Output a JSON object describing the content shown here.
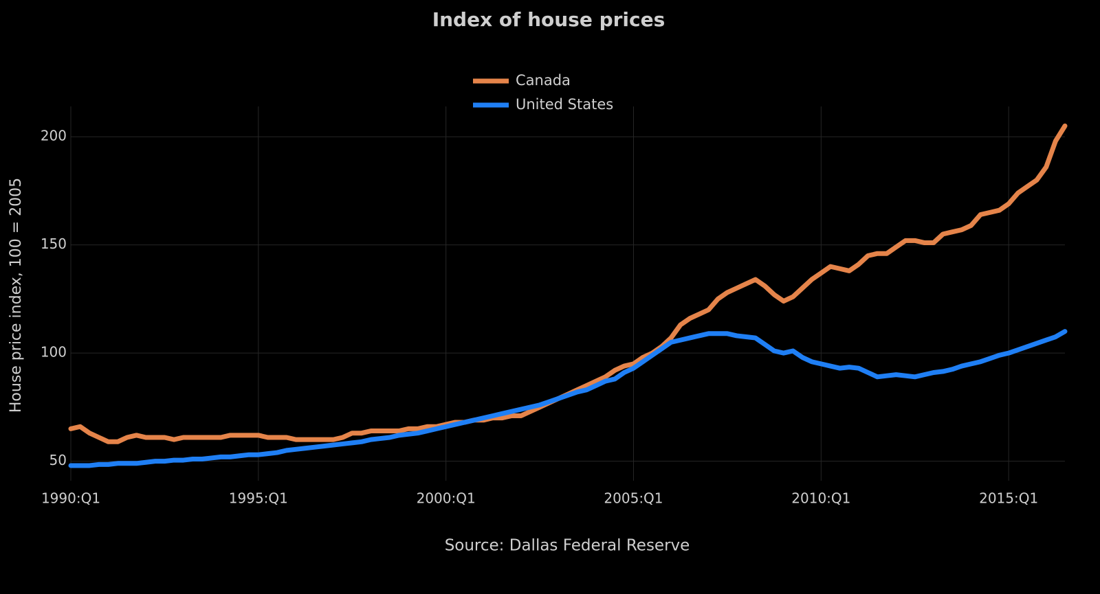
{
  "chart_data": {
    "type": "line",
    "title": "Index of house prices",
    "y_label": "House price index, 100 = 2005",
    "caption": "Source: Dallas Federal Reserve",
    "categories": [
      "1990:Q1",
      null,
      null,
      null,
      null,
      null,
      null,
      null,
      null,
      null,
      null,
      null,
      null,
      null,
      null,
      null,
      null,
      null,
      null,
      null,
      "1995:Q1",
      null,
      null,
      null,
      null,
      null,
      null,
      null,
      null,
      null,
      null,
      null,
      null,
      null,
      null,
      null,
      null,
      null,
      null,
      null,
      "2000:Q1",
      null,
      null,
      null,
      null,
      null,
      null,
      null,
      null,
      null,
      null,
      null,
      null,
      null,
      null,
      null,
      null,
      null,
      null,
      null,
      "2005:Q1",
      null,
      null,
      null,
      null,
      null,
      null,
      null,
      null,
      null,
      null,
      null,
      null,
      null,
      null,
      null,
      null,
      null,
      null,
      null,
      "2010:Q1",
      null,
      null,
      null,
      null,
      null,
      null,
      null,
      null,
      null,
      null,
      null,
      null,
      null,
      null,
      null,
      null,
      null,
      null,
      null,
      "2015:Q1",
      null,
      null,
      null,
      null,
      null,
      null
    ],
    "series": [
      {
        "name": "Canada",
        "color": "#e5844a",
        "values": [
          65,
          66,
          63,
          61,
          59,
          59,
          61,
          62,
          61,
          61,
          61,
          60,
          61,
          61,
          61,
          61,
          61,
          62,
          62,
          62,
          62,
          61,
          61,
          61,
          60,
          60,
          60,
          60,
          60,
          61,
          63,
          63,
          64,
          64,
          64,
          64,
          65,
          65,
          66,
          66,
          67,
          68,
          68,
          69,
          69,
          70,
          70,
          71,
          71,
          73,
          75,
          77,
          79,
          81,
          83,
          85,
          87,
          89,
          92,
          94,
          95,
          98,
          100,
          103,
          107,
          113,
          116,
          118,
          120,
          125,
          128,
          130,
          132,
          134,
          131,
          127,
          124,
          126,
          130,
          134,
          137,
          140,
          139,
          138,
          141,
          145,
          146,
          146,
          149,
          152,
          152,
          151,
          151,
          155,
          156,
          157,
          159,
          164,
          165,
          166,
          169,
          174,
          177,
          180,
          186,
          198,
          205
        ]
      },
      {
        "name": "United States",
        "color": "#1f7ff5",
        "values": [
          48,
          48,
          48,
          48.5,
          48.5,
          49,
          49,
          49,
          49.5,
          50,
          50,
          50.5,
          50.5,
          51,
          51,
          51.5,
          52,
          52,
          52.5,
          53,
          53,
          53.5,
          54,
          55,
          55.5,
          56,
          56.5,
          57,
          57.5,
          58,
          58.5,
          59,
          60,
          60.5,
          61,
          62,
          62.5,
          63,
          64,
          65,
          66,
          67,
          68,
          69,
          70,
          71,
          72,
          73,
          74,
          75,
          76,
          77.5,
          79,
          80.5,
          82,
          83,
          85,
          87,
          88,
          91,
          93,
          96,
          99,
          102,
          105,
          106,
          107,
          108,
          109,
          109,
          109,
          108,
          107.5,
          107,
          104,
          101,
          100,
          101,
          98,
          96,
          95,
          94,
          93,
          93.5,
          93,
          91,
          89,
          89.5,
          90,
          89.5,
          89,
          90,
          91,
          91.5,
          92.5,
          94,
          95,
          96,
          97.5,
          99,
          100,
          101.5,
          103,
          104.5,
          106,
          107.5,
          110
        ]
      }
    ],
    "ylim": [
      41,
      214
    ],
    "yticks": [
      50,
      100,
      150,
      200
    ],
    "grid": true
  }
}
